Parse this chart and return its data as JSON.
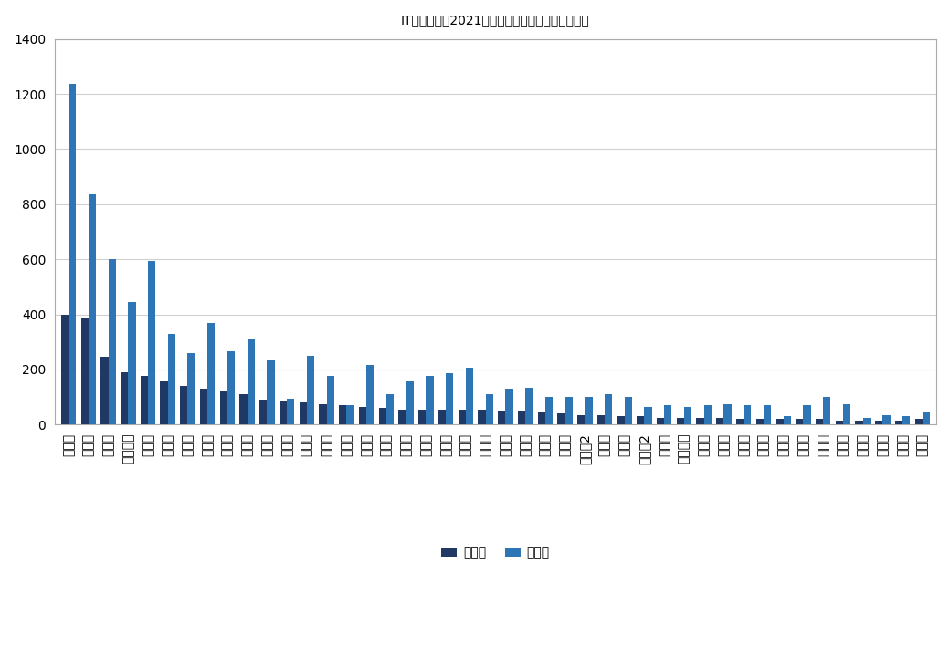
{
  "title": "IT導入補助金2021　都道府県別交付決定事業者数",
  "categories_display": [
    "東京都",
    "大阪府",
    "愛知県",
    "神奈川県",
    "福岡県",
    "兵庫県",
    "京都府",
    "埼玉県",
    "静岡県",
    "北海道",
    "広島県",
    "岐阜県",
    "千葉県",
    "岡山県",
    "長崎県",
    "群馬県",
    "茨城県",
    "宮城県",
    "三重県",
    "新潟県",
    "長野県",
    "熊本県",
    "滑賀県",
    "栃木県",
    "山口県",
    "石川県",
    "三重県2",
    "香川県",
    "大分県",
    "岐阜県2",
    "青森県",
    "和歌山県",
    "佐賀県",
    "愛媛県",
    "徳島県",
    "宮崎県",
    "山梨県",
    "山形県",
    "沖縄県",
    "福井県",
    "島根県",
    "鳥取県",
    "秋田県",
    "高知県"
  ],
  "values_1st": [
    400,
    390,
    245,
    190,
    175,
    160,
    140,
    130,
    120,
    110,
    90,
    85,
    80,
    75,
    70,
    65,
    60,
    55,
    55,
    55,
    55,
    55,
    50,
    50,
    45,
    40,
    35,
    35,
    30,
    30,
    25,
    25,
    25,
    25,
    20,
    20,
    20,
    20,
    20,
    15,
    15,
    15,
    15,
    20
  ],
  "values_2nd": [
    1235,
    835,
    600,
    445,
    595,
    330,
    260,
    370,
    265,
    310,
    235,
    95,
    250,
    175,
    70,
    215,
    110,
    160,
    175,
    185,
    205,
    110,
    130,
    135,
    100,
    100,
    100,
    110,
    100,
    65,
    70,
    65,
    70,
    75,
    70,
    70,
    30,
    70,
    100,
    75,
    25,
    35,
    30,
    45
  ],
  "color_1st": "#1f3864",
  "color_2nd": "#2e75b6",
  "legend_1st": "第１次",
  "legend_2nd": "第２次",
  "ylim": [
    0,
    1400
  ],
  "yticks": [
    0,
    200,
    400,
    600,
    800,
    1000,
    1200,
    1400
  ],
  "bg_color": "#ffffff",
  "grid_color": "#d0d0d0",
  "title_fontsize": 13,
  "bar_width": 0.38
}
